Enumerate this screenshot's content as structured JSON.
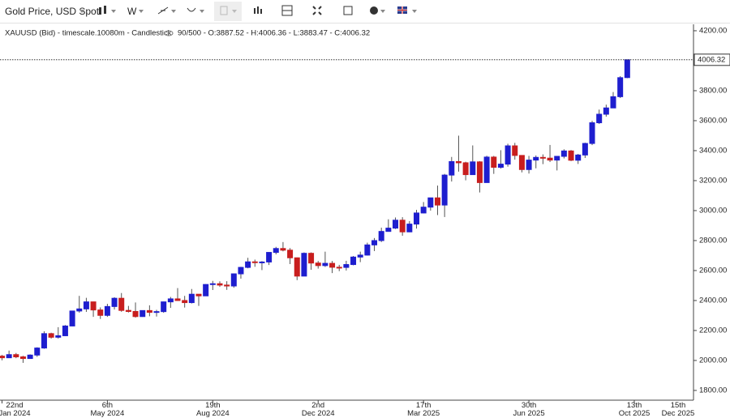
{
  "toolbar": {
    "symbol": "Gold Price, USD Spot",
    "interval": "W"
  },
  "chart_data": {
    "type": "candlestick",
    "legend_text": "XAUUSD (Bid) - timescale.10080m - Candlestick",
    "info_text": "90/500 - O:3887.52 - H:4006.36 - L:3883.47 - C:4006.32",
    "up_color": "#1e1ecf",
    "down_color": "#c81e1e",
    "wick_color": "#555555",
    "grid": false,
    "x": [
      "2024-01-22",
      "2024-01-29",
      "2024-02-05",
      "2024-02-12",
      "2024-02-19",
      "2024-02-26",
      "2024-03-04",
      "2024-03-11",
      "2024-03-18",
      "2024-03-25",
      "2024-04-01",
      "2024-04-08",
      "2024-04-15",
      "2024-04-22",
      "2024-04-29",
      "2024-05-06",
      "2024-05-13",
      "2024-05-20",
      "2024-05-27",
      "2024-06-03",
      "2024-06-10",
      "2024-06-17",
      "2024-06-24",
      "2024-07-01",
      "2024-07-08",
      "2024-07-15",
      "2024-07-22",
      "2024-07-29",
      "2024-08-05",
      "2024-08-12",
      "2024-08-19",
      "2024-08-26",
      "2024-09-02",
      "2024-09-09",
      "2024-09-16",
      "2024-09-23",
      "2024-09-30",
      "2024-10-07",
      "2024-10-14",
      "2024-10-21",
      "2024-10-28",
      "2024-11-04",
      "2024-11-11",
      "2024-11-18",
      "2024-11-25",
      "2024-12-02",
      "2024-12-09",
      "2024-12-16",
      "2024-12-23",
      "2024-12-30",
      "2025-01-06",
      "2025-01-13",
      "2025-01-20",
      "2025-01-27",
      "2025-02-03",
      "2025-02-10",
      "2025-02-17",
      "2025-02-24",
      "2025-03-03",
      "2025-03-10",
      "2025-03-17",
      "2025-03-24",
      "2025-03-31",
      "2025-04-07",
      "2025-04-14",
      "2025-04-21",
      "2025-04-28",
      "2025-05-05",
      "2025-05-12",
      "2025-05-19",
      "2025-05-26",
      "2025-06-02",
      "2025-06-09",
      "2025-06-16",
      "2025-06-23",
      "2025-06-30",
      "2025-07-07",
      "2025-07-14",
      "2025-07-21",
      "2025-07-28",
      "2025-08-04",
      "2025-08-11",
      "2025-08-18",
      "2025-08-25",
      "2025-09-01",
      "2025-09-08",
      "2025-09-15",
      "2025-09-22",
      "2025-09-29",
      "2025-10-06"
    ],
    "open": [
      2029,
      2018,
      2039,
      2024,
      2013,
      2036,
      2083,
      2179,
      2155,
      2165,
      2230,
      2330,
      2344,
      2391,
      2337,
      2301,
      2360,
      2415,
      2334,
      2327,
      2293,
      2333,
      2321,
      2326,
      2391,
      2411,
      2400,
      2386,
      2442,
      2431,
      2507,
      2512,
      2503,
      2497,
      2578,
      2621,
      2658,
      2653,
      2657,
      2721,
      2747,
      2736,
      2685,
      2563,
      2715,
      2650,
      2633,
      2648,
      2622,
      2621,
      2640,
      2690,
      2703,
      2771,
      2800,
      2861,
      2883,
      2936,
      2858,
      2910,
      2984,
      3023,
      3085,
      3037,
      3237,
      3327,
      3319,
      3240,
      3325,
      3187,
      3357,
      3289,
      3310,
      3432,
      3368,
      3274,
      3337,
      3355,
      3350,
      3337,
      3362,
      3398,
      3336,
      3371,
      3448,
      3586,
      3643,
      3685,
      3760,
      3887.52
    ],
    "high": [
      2037,
      2066,
      2050,
      2031,
      2041,
      2088,
      2195,
      2185,
      2222,
      2236,
      2331,
      2431,
      2418,
      2392,
      2354,
      2378,
      2422,
      2450,
      2364,
      2387,
      2335,
      2368,
      2338,
      2392,
      2424,
      2483,
      2431,
      2477,
      2443,
      2509,
      2531,
      2528,
      2529,
      2581,
      2625,
      2685,
      2673,
      2663,
      2722,
      2758,
      2790,
      2750,
      2687,
      2721,
      2721,
      2664,
      2726,
      2664,
      2638,
      2665,
      2697,
      2726,
      2786,
      2817,
      2886,
      2942,
      2954,
      2956,
      2930,
      3005,
      3057,
      3086,
      3167,
      3245,
      3358,
      3500,
      3326,
      3435,
      3330,
      3366,
      3365,
      3403,
      3446,
      3452,
      3368,
      3365,
      3368,
      3375,
      3438,
      3363,
      3409,
      3404,
      3378,
      3453,
      3599,
      3674,
      3707,
      3791,
      3897,
      4006.36
    ],
    "low": [
      2001,
      2016,
      2015,
      1984,
      2011,
      2024,
      2078,
      2146,
      2146,
      2162,
      2228,
      2319,
      2324,
      2291,
      2277,
      2291,
      2340,
      2325,
      2320,
      2286,
      2291,
      2295,
      2293,
      2318,
      2351,
      2398,
      2353,
      2380,
      2364,
      2430,
      2470,
      2491,
      2471,
      2485,
      2546,
      2615,
      2625,
      2603,
      2637,
      2708,
      2728,
      2643,
      2536,
      2563,
      2605,
      2613,
      2624,
      2583,
      2596,
      2600,
      2635,
      2656,
      2700,
      2730,
      2790,
      2860,
      2877,
      2832,
      2856,
      2880,
      2982,
      3000,
      2970,
      2957,
      3194,
      3260,
      3202,
      3240,
      3121,
      3202,
      3245,
      3280,
      3293,
      3340,
      3255,
      3247,
      3282,
      3310,
      3324,
      3268,
      3348,
      3330,
      3311,
      3351,
      3437,
      3578,
      3627,
      3685,
      3751,
      3883.47
    ],
    "close": [
      2018,
      2039,
      2024,
      2013,
      2036,
      2083,
      2179,
      2155,
      2165,
      2230,
      2330,
      2344,
      2391,
      2337,
      2301,
      2360,
      2415,
      2334,
      2327,
      2293,
      2333,
      2321,
      2326,
      2391,
      2411,
      2400,
      2386,
      2442,
      2431,
      2507,
      2512,
      2503,
      2497,
      2578,
      2621,
      2658,
      2653,
      2657,
      2721,
      2747,
      2736,
      2685,
      2563,
      2715,
      2650,
      2633,
      2648,
      2622,
      2621,
      2640,
      2690,
      2703,
      2771,
      2800,
      2861,
      2883,
      2936,
      2858,
      2910,
      2984,
      3023,
      3085,
      3037,
      3237,
      3327,
      3319,
      3240,
      3325,
      3187,
      3357,
      3289,
      3310,
      3432,
      3368,
      3274,
      3337,
      3355,
      3350,
      3337,
      3362,
      3398,
      3336,
      3371,
      3448,
      3586,
      3643,
      3685,
      3760,
      3887,
      4006.32
    ],
    "xlim": [
      "2024-01-20",
      "2025-12-11"
    ],
    "xticks": [
      {
        "value": "2024-01-22",
        "label": "22nd\nJan 2024"
      },
      {
        "value": "2024-05-06",
        "label": "6th\nMay 2024"
      },
      {
        "value": "2024-08-19",
        "label": "19th\nAug 2024"
      },
      {
        "value": "2024-12-02",
        "label": "2nd\nDec 2024"
      },
      {
        "value": "2025-03-17",
        "label": "17th\nMar 2025"
      },
      {
        "value": "2025-06-30",
        "label": "30th\nJun 2025"
      },
      {
        "value": "2025-10-13",
        "label": "13th\nOct 2025"
      },
      {
        "value": "2025-12-15",
        "label": "15th\nDec 2025"
      }
    ],
    "ylim": [
      1735,
      4243
    ],
    "yticks": [
      {
        "value": 1800,
        "label": "1800.00"
      },
      {
        "value": 2000,
        "label": "2000.00"
      },
      {
        "value": 2200,
        "label": "2200.00"
      },
      {
        "value": 2400,
        "label": "2400.00"
      },
      {
        "value": 2600,
        "label": "2600.00"
      },
      {
        "value": 2800,
        "label": "2800.00"
      },
      {
        "value": 3000,
        "label": "3000.00"
      },
      {
        "value": 3200,
        "label": "3200.00"
      },
      {
        "value": 3400,
        "label": "3400.00"
      },
      {
        "value": 3600,
        "label": "3600.00"
      },
      {
        "value": 3800,
        "label": "3800.00"
      },
      {
        "value": 4000,
        "label": "4000.00"
      },
      {
        "value": 4200,
        "label": "4200.00"
      }
    ]
  }
}
